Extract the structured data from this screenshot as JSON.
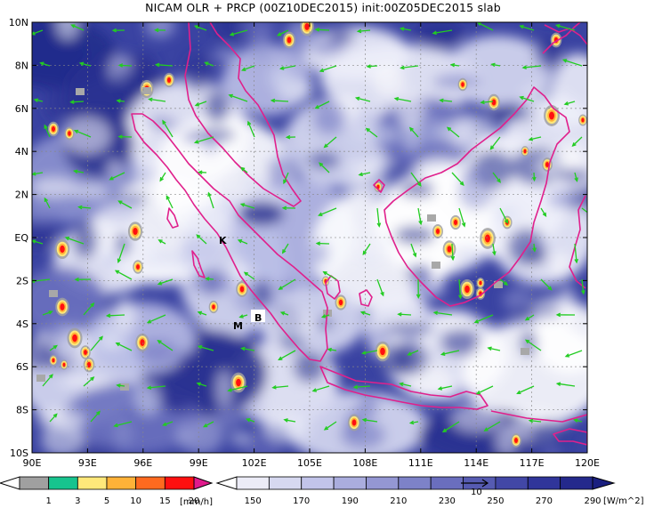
{
  "title": "NICAM OLR + PRCP (00Z10DEC2015) init:00Z05DEC2015 slab",
  "map": {
    "lat_labels": [
      "10N",
      "8N",
      "6N",
      "4N",
      "2N",
      "EQ",
      "2S",
      "4S",
      "6S",
      "8S",
      "10S"
    ],
    "lon_labels": [
      "90E",
      "93E",
      "96E",
      "99E",
      "102E",
      "105E",
      "108E",
      "111E",
      "114E",
      "117E",
      "120E"
    ],
    "lon_range": [
      90,
      120
    ],
    "lat_range": [
      -10,
      10
    ],
    "grid": true,
    "place_labels": [
      "K",
      "M",
      "B"
    ],
    "colors": {
      "background": "#ffffff",
      "olr_deep": "#1f2a8a",
      "olr_mid": "#5a63b8",
      "olr_light": "#b9bde6",
      "coastline": "#e0208c",
      "wind_vector": "#22cc22",
      "gridline": "#888888"
    }
  },
  "legend_precip": {
    "labels": [
      "1",
      "3",
      "5",
      "10",
      "15",
      "20"
    ],
    "unit": "[mm/h]",
    "colors": [
      "#ffffff",
      "#a0a0a0",
      "#17c48e",
      "#ffe87a",
      "#ffb238",
      "#ff6a1f",
      "#ff1010",
      "#e01a8c"
    ]
  },
  "legend_olr": {
    "labels": [
      "150",
      "170",
      "190",
      "210",
      "230",
      "250",
      "270",
      "290"
    ],
    "unit": "[W/m^2]",
    "vector_ref": "10",
    "colors": [
      "#ffffff",
      "#ececf7",
      "#d6d8f0",
      "#c2c4ea",
      "#aaadde",
      "#9497d3",
      "#7d82c8",
      "#6a6ebe",
      "#565bb2",
      "#4247a6",
      "#30359a",
      "#24298c",
      "#1a1f80"
    ]
  }
}
